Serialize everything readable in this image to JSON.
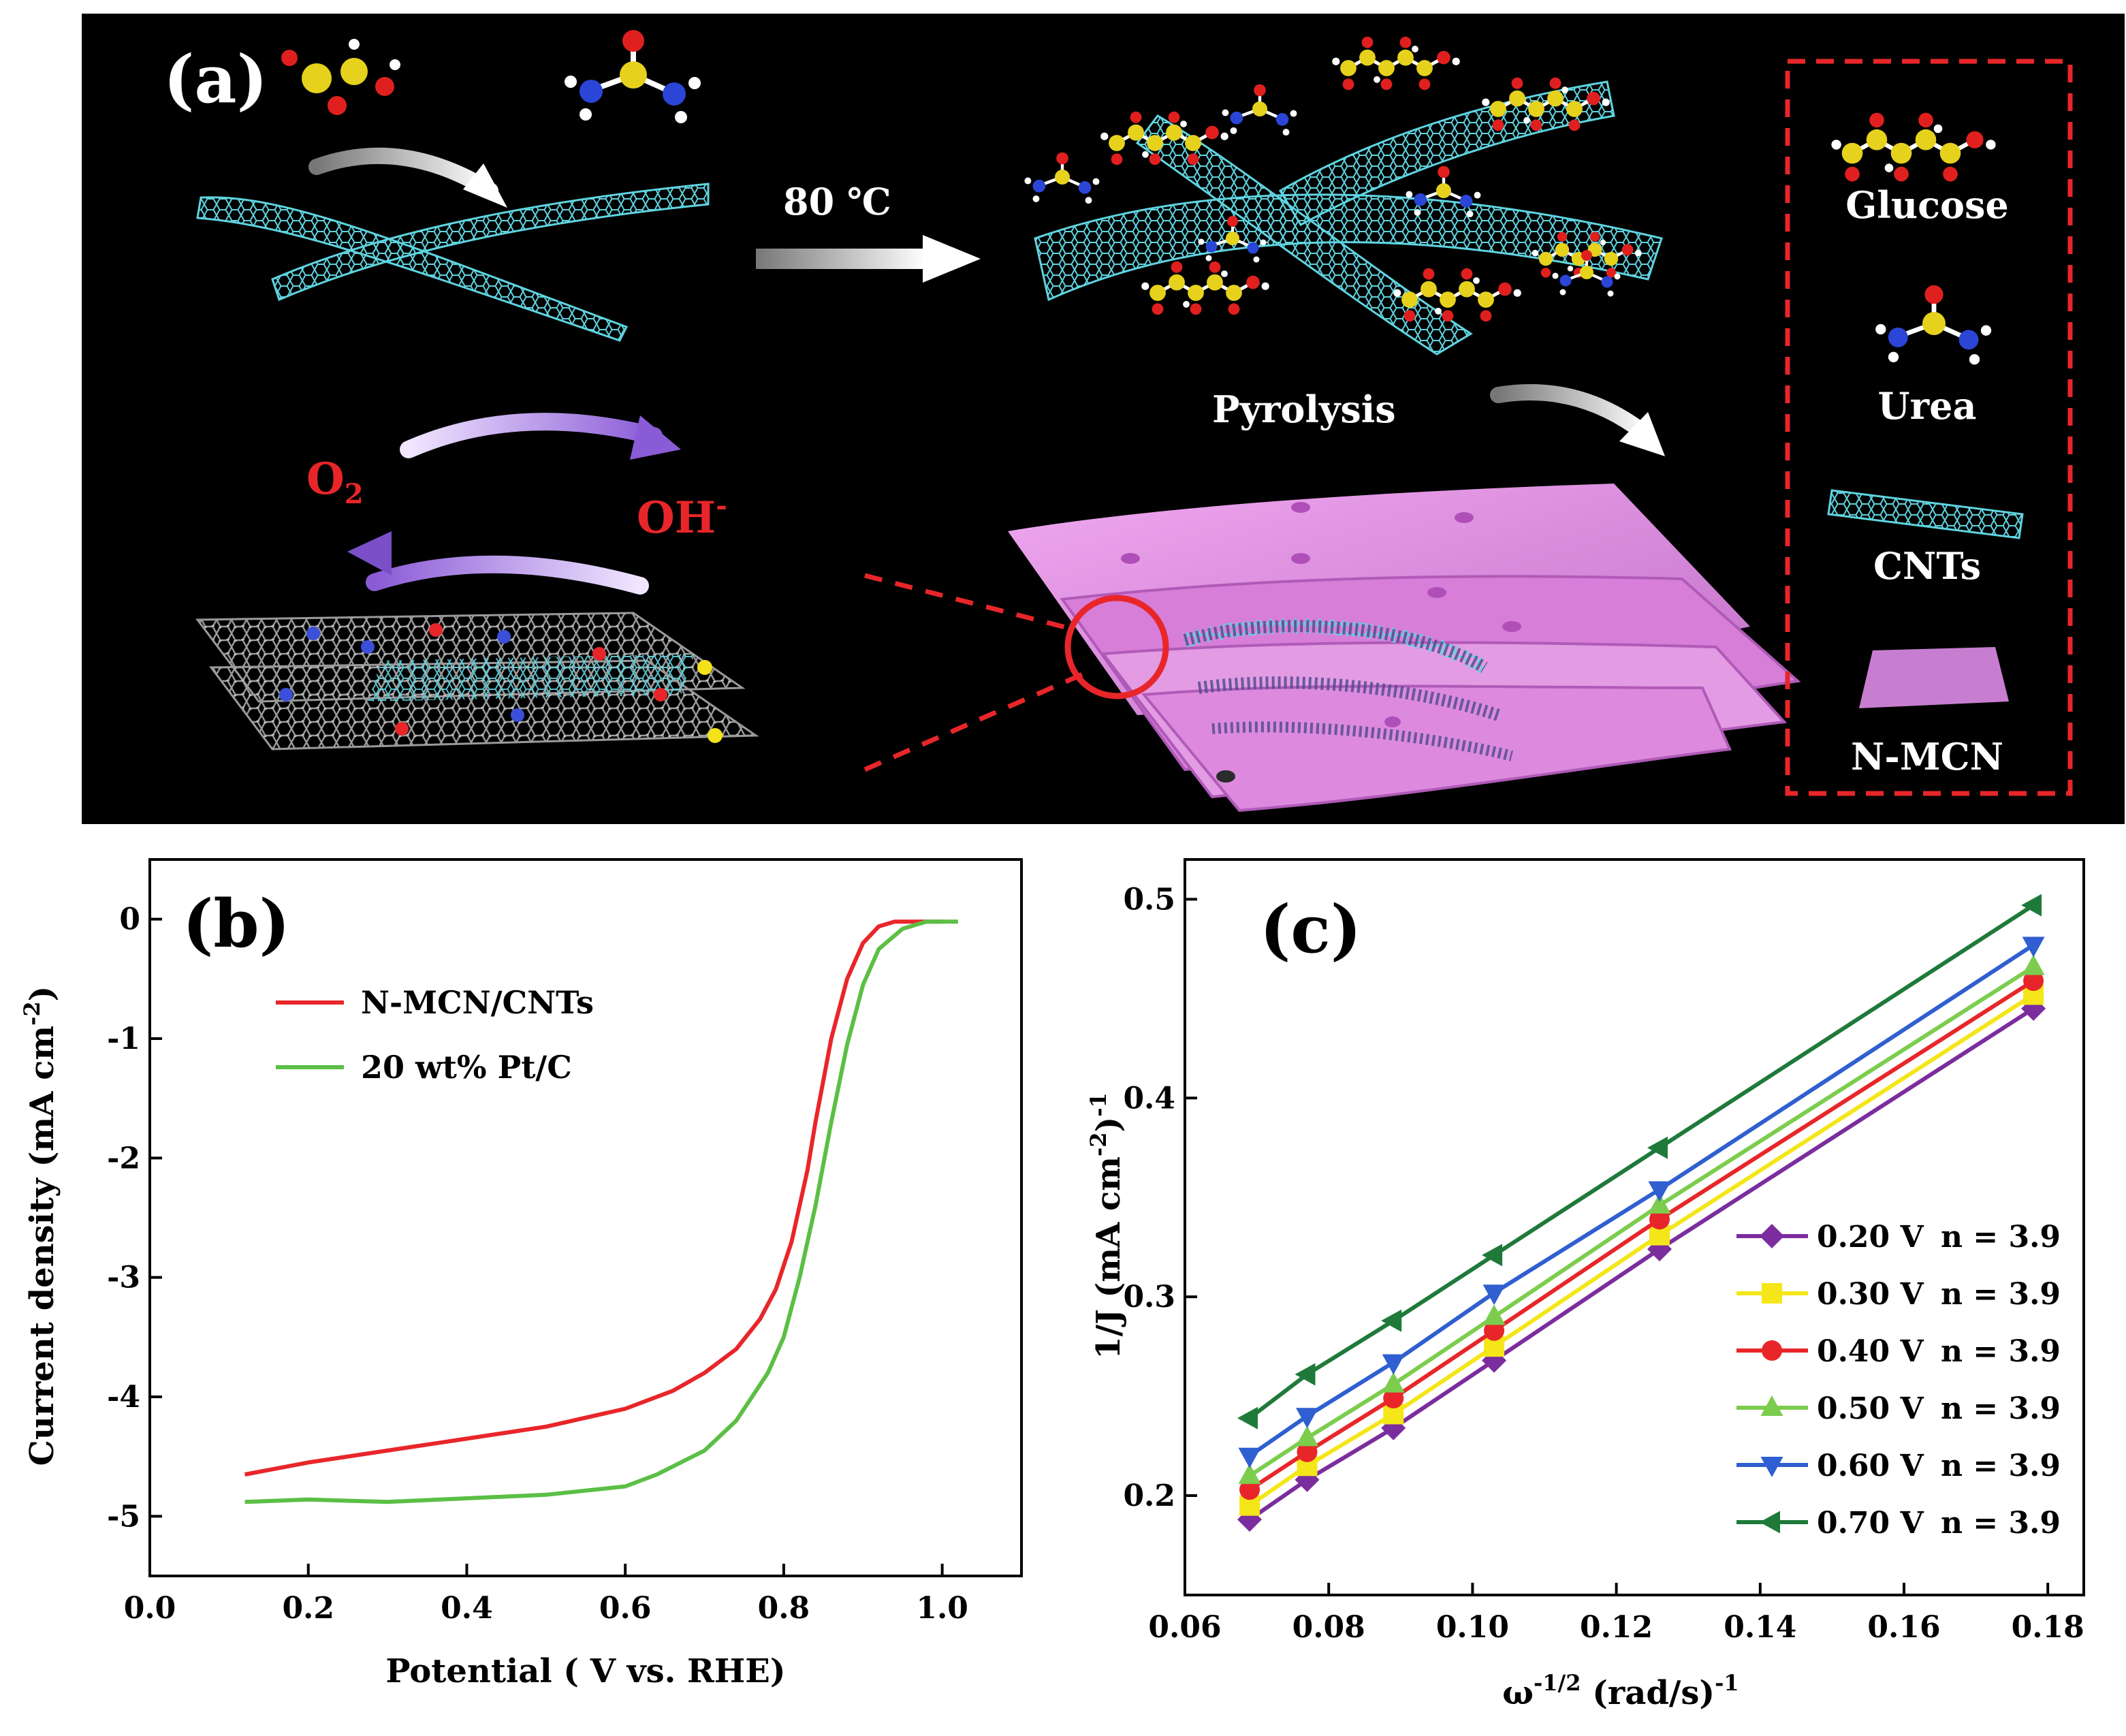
{
  "panel_a": {
    "label": "(a)",
    "temperature": "80 ℃",
    "step_label": "Pyrolysis",
    "reactant": "O",
    "reactant_sub": "2",
    "product": "OH",
    "product_sup": "-",
    "legend": [
      "Glucose",
      "Urea",
      "CNTs",
      "N-MCN"
    ]
  },
  "chart_data": [
    {
      "type": "line",
      "panel": "(b)",
      "xlabel": "Potential ( V vs. RHE)",
      "ylabel": "Current density (mA cm",
      "ylabel_sup": "-2",
      "ylabel_end": ")",
      "xlim": [
        0.0,
        1.1
      ],
      "ylim": [
        -5.5,
        0.5
      ],
      "xticks": [
        "0.0",
        "0.2",
        "0.4",
        "0.6",
        "0.8",
        "1.0"
      ],
      "yticks": [
        "0",
        "-1",
        "-2",
        "-3",
        "-4",
        "-5"
      ],
      "legend_position": "top-left",
      "series": [
        {
          "name": "N-MCN/CNTs",
          "color": "#e8262a",
          "x": [
            0.12,
            0.2,
            0.3,
            0.4,
            0.5,
            0.6,
            0.66,
            0.7,
            0.74,
            0.77,
            0.79,
            0.81,
            0.83,
            0.84,
            0.86,
            0.88,
            0.9,
            0.92,
            0.94,
            1.0
          ],
          "y": [
            -4.65,
            -4.55,
            -4.45,
            -4.35,
            -4.25,
            -4.1,
            -3.95,
            -3.8,
            -3.6,
            -3.35,
            -3.1,
            -2.7,
            -2.1,
            -1.7,
            -1.0,
            -0.5,
            -0.2,
            -0.06,
            -0.02,
            -0.02
          ]
        },
        {
          "name": "20 wt% Pt/C",
          "color": "#5bbf45",
          "x": [
            0.12,
            0.2,
            0.3,
            0.4,
            0.5,
            0.6,
            0.64,
            0.7,
            0.74,
            0.78,
            0.8,
            0.82,
            0.84,
            0.86,
            0.88,
            0.9,
            0.92,
            0.95,
            0.98,
            1.02
          ],
          "y": [
            -4.88,
            -4.86,
            -4.88,
            -4.85,
            -4.82,
            -4.75,
            -4.65,
            -4.45,
            -4.2,
            -3.8,
            -3.5,
            -3.0,
            -2.4,
            -1.7,
            -1.05,
            -0.55,
            -0.25,
            -0.08,
            -0.02,
            -0.02
          ]
        }
      ]
    },
    {
      "type": "line",
      "panel": "(c)",
      "xlabel_prefix": "ω",
      "xlabel_sup": "-1/2",
      "xlabel_mid": " (rad/s)",
      "xlabel_sup2": "-1",
      "ylabel": "1/J (mA cm",
      "ylabel_sup": "-2",
      "ylabel_mid": ")",
      "ylabel_sup2": "-1",
      "xlim": [
        0.06,
        0.185
      ],
      "ylim": [
        0.15,
        0.52
      ],
      "xticks": [
        "0.06",
        "0.08",
        "0.10",
        "0.12",
        "0.14",
        "0.16",
        "0.18"
      ],
      "yticks": [
        "0.2",
        "0.3",
        "0.4",
        "0.5"
      ],
      "legend_position": "bottom-right",
      "x": [
        0.069,
        0.077,
        0.089,
        0.103,
        0.126,
        0.178
      ],
      "series": [
        {
          "name": "0.20 V",
          "n_label": "n = 3.9",
          "color": "#7b2d9e",
          "marker": "diamond",
          "y": [
            0.188,
            0.208,
            0.234,
            0.268,
            0.324,
            0.445
          ]
        },
        {
          "name": "0.30 V",
          "n_label": "n = 3.9",
          "color": "#f4e619",
          "marker": "square",
          "y": [
            0.195,
            0.215,
            0.241,
            0.275,
            0.331,
            0.452
          ]
        },
        {
          "name": "0.40 V",
          "n_label": "n = 3.9",
          "color": "#e8262a",
          "marker": "circle",
          "y": [
            0.203,
            0.222,
            0.249,
            0.283,
            0.339,
            0.459
          ]
        },
        {
          "name": "0.50 V",
          "n_label": "n = 3.9",
          "color": "#7ccd4e",
          "marker": "triangle-up",
          "y": [
            0.21,
            0.229,
            0.256,
            0.29,
            0.346,
            0.466
          ]
        },
        {
          "name": "0.60 V",
          "n_label": "n = 3.9",
          "color": "#2f5fd0",
          "marker": "triangle-down",
          "y": [
            0.22,
            0.24,
            0.267,
            0.302,
            0.354,
            0.477
          ]
        },
        {
          "name": "0.70 V",
          "n_label": "n = 3.9",
          "color": "#1f7a3a",
          "marker": "triangle-left",
          "y": [
            0.239,
            0.261,
            0.288,
            0.321,
            0.375,
            0.497
          ]
        }
      ]
    }
  ]
}
